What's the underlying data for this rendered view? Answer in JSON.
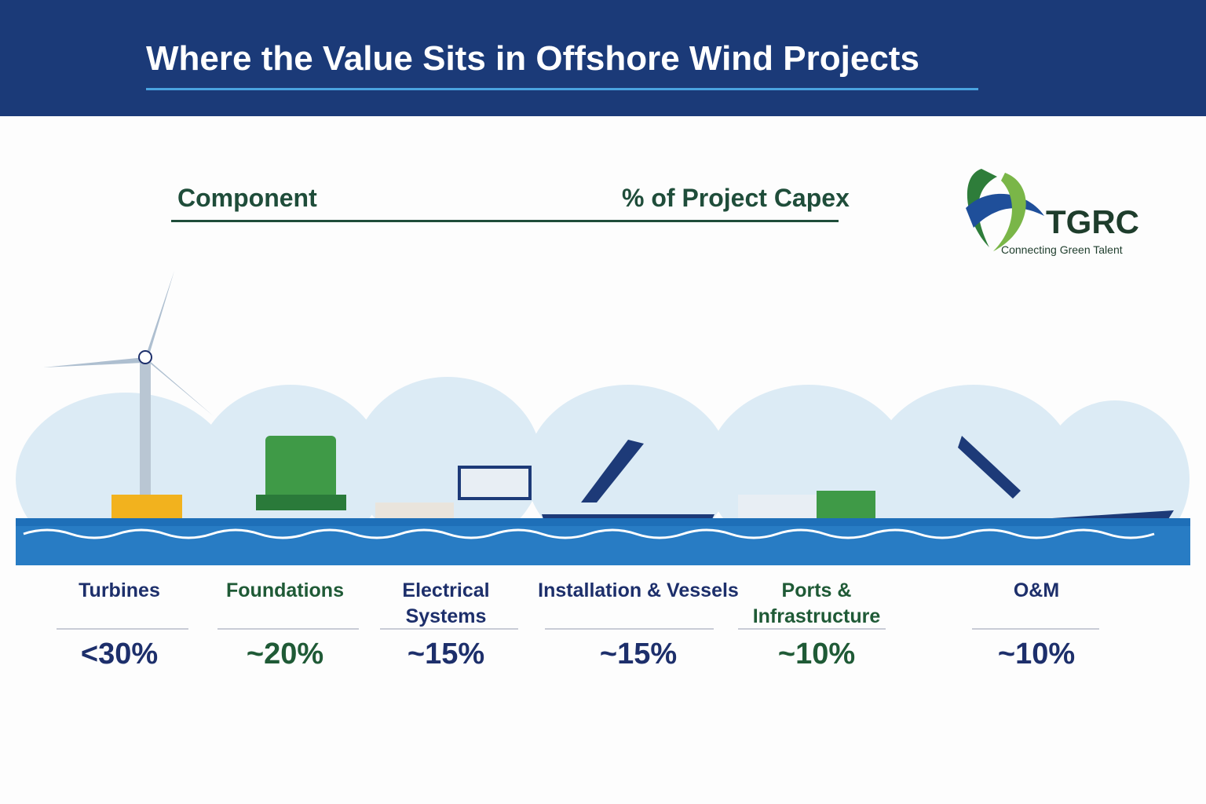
{
  "header": {
    "title": "Where the Value Sits in Offshore Wind Projects"
  },
  "table_header": {
    "component": "Component",
    "share": "% of Project Capex"
  },
  "logo": {
    "name": "TGRC",
    "tagline": "Connecting Green Talent"
  },
  "items": [
    {
      "label": "Turbines",
      "value": "<30%"
    },
    {
      "label": "Foundations",
      "value": "~20%"
    },
    {
      "label": "Electrical Systems",
      "value": "~15%"
    },
    {
      "label": "Installation & Vessels",
      "value": "~15%"
    },
    {
      "label": "Ports & Infrastructure",
      "value": "~10%"
    },
    {
      "label": "O&M",
      "value": "~10%"
    }
  ]
}
